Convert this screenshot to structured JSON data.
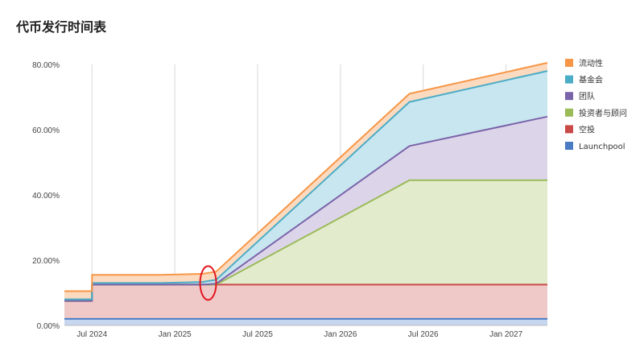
{
  "chart_data": {
    "type": "area",
    "stacked": true,
    "title": "代币发行时间表",
    "xlabel": "",
    "ylabel": "",
    "x_ticks": [
      "Jul 2024",
      "Jan 2025",
      "Jul 2025",
      "Jan 2026",
      "Jul 2026",
      "Jan 2027"
    ],
    "y_ticks": [
      "0.00%",
      "20.00%",
      "40.00%",
      "60.00%",
      "80.00%"
    ],
    "ylim": [
      0,
      80
    ],
    "x": [
      "2024-05",
      "2024-06",
      "2024-07",
      "2024-12",
      "2025-03",
      "2025-04",
      "2026-06",
      "2027-04"
    ],
    "series": [
      {
        "name": "Launchpool",
        "color": "#4a7cc4",
        "fill": "#c7d6ef",
        "values": [
          2,
          2,
          2,
          2,
          2,
          2,
          2,
          2
        ]
      },
      {
        "name": "空投",
        "color": "#c94a48",
        "fill": "#efc9c8",
        "values": [
          5.5,
          5.5,
          10.5,
          10.5,
          10.5,
          10.5,
          10.5,
          10.5
        ]
      },
      {
        "name": "投资者与顾问",
        "color": "#9bbb59",
        "fill": "#e3ebcd",
        "values": [
          0,
          0,
          0,
          0,
          0,
          0,
          32,
          32
        ]
      },
      {
        "name": "团队",
        "color": "#7b63a9",
        "fill": "#dcd5ea",
        "values": [
          0,
          0,
          0,
          0,
          0,
          0.3,
          10.5,
          19.5
        ]
      },
      {
        "name": "基金会",
        "color": "#4bacc6",
        "fill": "#c8e6ef",
        "values": [
          0.5,
          0.5,
          0.5,
          0.5,
          0.8,
          1.2,
          13.5,
          14
        ]
      },
      {
        "name": "流动性",
        "color": "#f79646",
        "fill": "#fbdac0",
        "values": [
          2.5,
          2.5,
          2.5,
          2.5,
          2.5,
          2.5,
          2.5,
          2.5
        ]
      }
    ],
    "legend_order": [
      "流动性",
      "基金会",
      "团队",
      "投资者与顾问",
      "空投",
      "Launchpool"
    ],
    "legend_position": "right",
    "grid": "vertical",
    "annotation": "red circle at Apr 2025"
  }
}
